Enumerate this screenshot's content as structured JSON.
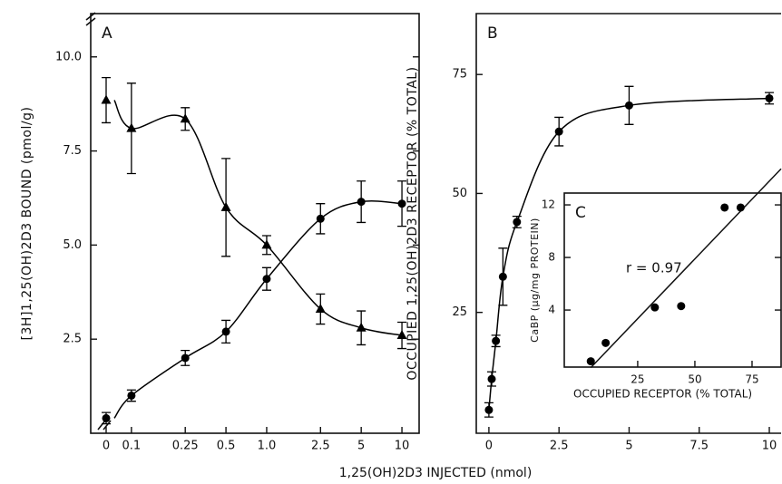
{
  "chart_data": [
    {
      "type": "scatter",
      "label": "A",
      "ylabel": "[3H]1,25(OH)2D3  BOUND  (pmol/g)",
      "xlabel": "1,25(OH)2D3  INJECTED  (nmol)",
      "xscale": "log",
      "x": [
        0,
        0.1,
        0.25,
        0.5,
        1.0,
        2.5,
        5,
        10
      ],
      "xlim": [
        0.05,
        13.4
      ],
      "xticks": [
        0,
        0.1,
        0.25,
        0.5,
        {
          "value": 1.0,
          "label": "1.0"
        },
        2.5,
        5,
        10
      ],
      "ylim": [
        0,
        11.15
      ],
      "yticks": [
        2.5,
        {
          "value": 5,
          "label": "5.0"
        },
        7.5,
        {
          "value": 10,
          "label": "10.0"
        }
      ],
      "series": [
        {
          "marker": "triangle",
          "color": "#000000",
          "values": [
            8.85,
            8.1,
            8.35,
            6.0,
            5.0,
            3.3,
            2.8,
            2.6
          ],
          "errors": [
            0.6,
            1.2,
            0.3,
            1.3,
            0.25,
            0.4,
            0.45,
            0.35
          ]
        },
        {
          "marker": "circle",
          "color": "#000000",
          "values": [
            0.4,
            1.0,
            2.0,
            2.7,
            4.1,
            5.7,
            6.15,
            6.1
          ],
          "errors": [
            0.15,
            0.15,
            0.2,
            0.3,
            0.3,
            0.4,
            0.55,
            0.6
          ]
        }
      ]
    },
    {
      "type": "scatter",
      "label": "B",
      "ylabel": "OCCUPIED  1,25(OH)2D3  RECEPTOR  (%  TOTAL)",
      "x": [
        0,
        0.1,
        0.25,
        0.5,
        1.0,
        2.5,
        5,
        10
      ],
      "xlim": [
        -0.45,
        10.42
      ],
      "xticks": [
        0,
        2.5,
        5,
        7.5,
        10
      ],
      "ylim": [
        -0.4,
        87.8
      ],
      "yticks": [
        25,
        50,
        75
      ],
      "series": [
        {
          "marker": "circle",
          "color": "#000000",
          "values": [
            4.5,
            11,
            19,
            32.5,
            44,
            63,
            68.5,
            70
          ],
          "errors": [
            1.5,
            1.5,
            1.2,
            6,
            1.2,
            3,
            4,
            1.2
          ]
        }
      ]
    },
    {
      "type": "scatter",
      "label": "C",
      "ylabel": "CaBP  (μg/mg  PROTEIN)",
      "xlabel": "OCCUPIED  RECEPTOR (% TOTAL)",
      "annotation": "r = 0.97",
      "x": [
        4.5,
        11,
        32.5,
        44,
        63,
        70
      ],
      "xlim": [
        -7.1,
        87.7
      ],
      "xticks": [
        25,
        50,
        75
      ],
      "ylim": [
        -0.34,
        12.9
      ],
      "yticks": [
        4,
        8,
        12
      ],
      "series": [
        {
          "marker": "circle",
          "color": "#000000",
          "values": [
            0.1,
            1.5,
            4.2,
            4.3,
            11.8,
            11.8
          ]
        }
      ]
    }
  ]
}
